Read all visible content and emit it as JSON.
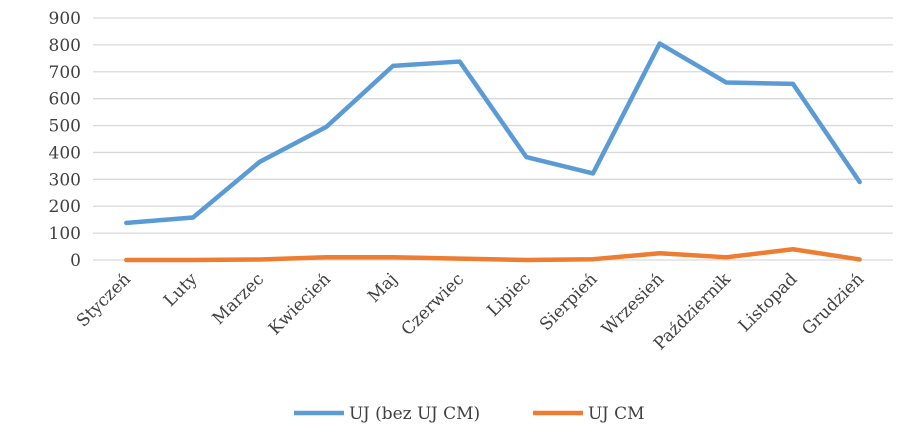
{
  "chart_data": {
    "type": "line",
    "categories": [
      "Styczeń",
      "Luty",
      "Marzec",
      "Kwiecień",
      "Maj",
      "Czerwiec",
      "Lipiec",
      "Sierpień",
      "Wrzesień",
      "Październik",
      "Listopad",
      "Grudzień"
    ],
    "series": [
      {
        "name": "UJ (bez UJ CM)",
        "color": "#5b9bd5",
        "values": [
          138,
          158,
          365,
          495,
          722,
          738,
          383,
          322,
          805,
          660,
          655,
          290
        ]
      },
      {
        "name": "UJ CM",
        "color": "#ed7d31",
        "values": [
          0,
          0,
          2,
          10,
          10,
          5,
          0,
          3,
          25,
          10,
          40,
          2
        ]
      }
    ],
    "ylim": [
      0,
      900
    ],
    "yticks": [
      0,
      100,
      200,
      300,
      400,
      500,
      600,
      700,
      800,
      900
    ],
    "grid": true,
    "legend_position": "bottom"
  }
}
